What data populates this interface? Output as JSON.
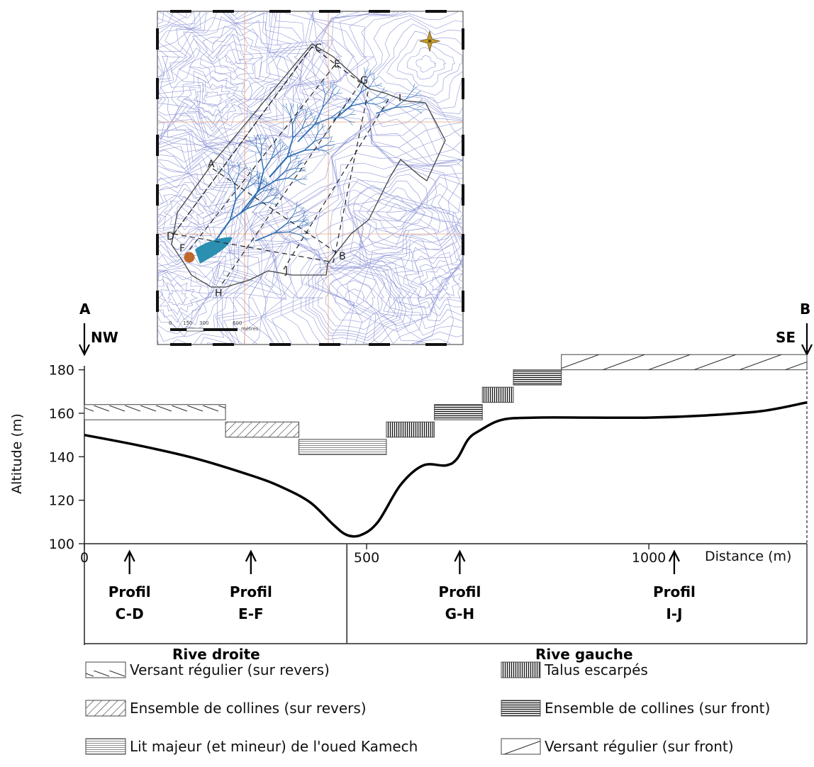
{
  "map": {
    "profile_letters": [
      "A",
      "B",
      "C",
      "D",
      "E",
      "F",
      "G",
      "H",
      "I",
      "J"
    ],
    "scale_labels": [
      "0",
      "150",
      "300",
      "600"
    ],
    "scale_unit": "mètres",
    "compass": "north-arrow-icon"
  },
  "profile": {
    "endpoint_left": {
      "letter": "A",
      "orientation": "NW"
    },
    "endpoint_right": {
      "letter": "B",
      "orientation": "SE"
    },
    "ylabel": "Altitude (m)",
    "xlabel": "Distance (m)",
    "yticks": [
      "100",
      "120",
      "140",
      "160",
      "180"
    ],
    "xticks": [
      "0",
      "500",
      "1000"
    ],
    "markers": [
      {
        "label": "Profil",
        "pair": "C-D"
      },
      {
        "label": "Profil",
        "pair": "E-F"
      },
      {
        "label": "Profil",
        "pair": "G-H"
      },
      {
        "label": "Profil",
        "pair": "I-J"
      }
    ],
    "banks": {
      "left": "Rive droite",
      "right": "Rive gauche"
    }
  },
  "chart_data": {
    "type": "line",
    "xlabel": "Distance (m)",
    "ylabel": "Altitude (m)",
    "xlim": [
      0,
      1280
    ],
    "ylim": [
      100,
      190
    ],
    "x": [
      0,
      100,
      200,
      300,
      350,
      400,
      440,
      465,
      490,
      520,
      560,
      600,
      640,
      660,
      680,
      700,
      740,
      800,
      900,
      1000,
      1100,
      1200,
      1280
    ],
    "y": [
      150,
      145,
      139,
      131,
      126,
      119,
      109,
      104,
      104,
      110,
      127,
      136,
      136,
      139,
      148,
      152,
      157,
      158,
      158,
      158,
      159,
      161,
      165
    ],
    "segments": [
      {
        "unit": "versant_revers",
        "x0": 0,
        "x1": 250,
        "y0": 157,
        "y1": 164
      },
      {
        "unit": "collines_revers",
        "x0": 250,
        "x1": 380,
        "y0": 149,
        "y1": 156
      },
      {
        "unit": "lit_majeur",
        "x0": 380,
        "x1": 535,
        "y0": 141,
        "y1": 148
      },
      {
        "unit": "talus",
        "x0": 535,
        "x1": 620,
        "y0": 149,
        "y1": 156
      },
      {
        "unit": "collines_front",
        "x0": 620,
        "x1": 705,
        "y0": 157,
        "y1": 164
      },
      {
        "unit": "talus",
        "x0": 705,
        "x1": 760,
        "y0": 165,
        "y1": 172
      },
      {
        "unit": "collines_front",
        "x0": 760,
        "x1": 845,
        "y0": 173,
        "y1": 180
      },
      {
        "unit": "versant_front",
        "x0": 845,
        "x1": 1280,
        "y0": 180,
        "y1": 187
      }
    ],
    "marker_x": [
      80,
      295,
      665,
      1045
    ]
  },
  "legend": [
    {
      "unit": "versant_revers",
      "label": "Versant régulier (sur revers)"
    },
    {
      "unit": "collines_revers",
      "label": "Ensemble de collines (sur revers)"
    },
    {
      "unit": "lit_majeur",
      "label": "Lit majeur (et mineur) de l'oued Kamech"
    },
    {
      "unit": "talus",
      "label": "Talus escarpés"
    },
    {
      "unit": "collines_front",
      "label": "Ensemble de collines (sur front)"
    },
    {
      "unit": "versant_front",
      "label": "Versant régulier (sur front)"
    }
  ],
  "colors": {
    "contour": "#8f96d6",
    "stream": "#2d6db3",
    "reservoir": "#2a8fb0",
    "dam": "#c0672a",
    "grid": "#e8a07a",
    "compass": "#c8a030"
  }
}
